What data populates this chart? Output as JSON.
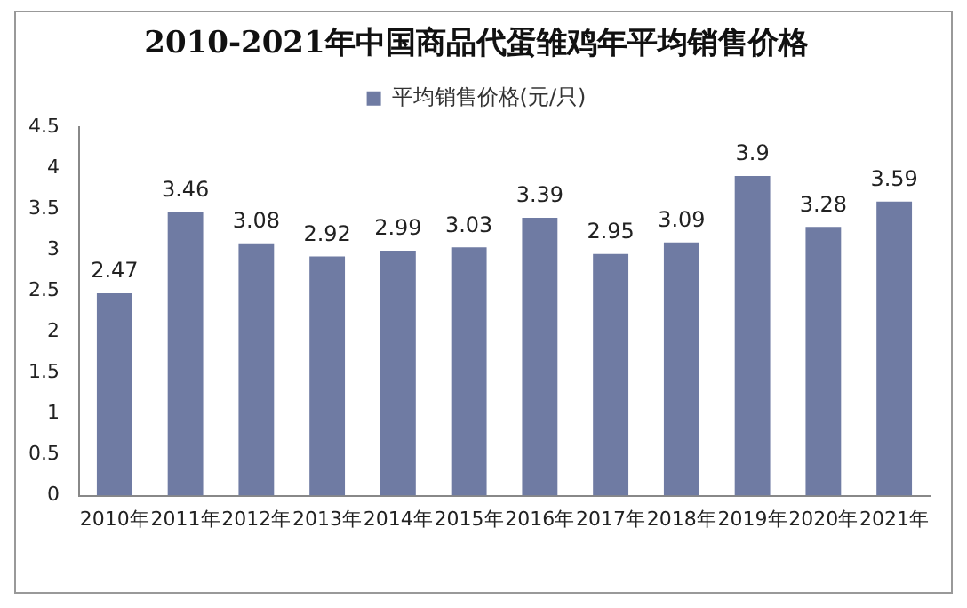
{
  "chart_data": {
    "type": "bar",
    "title": "2010-2021年中国商品代蛋雏鸡年平均销售价格",
    "categories": [
      "2010年",
      "2011年",
      "2012年",
      "2013年",
      "2014年",
      "2015年",
      "2016年",
      "2017年",
      "2018年",
      "2019年",
      "2020年",
      "2021年"
    ],
    "series": [
      {
        "name": "平均销售价格(元/只)",
        "color": "#6f7ba3",
        "values": [
          2.47,
          3.46,
          3.08,
          2.92,
          2.99,
          3.03,
          3.39,
          2.95,
          3.09,
          3.9,
          3.28,
          3.59
        ]
      }
    ],
    "ylim": [
      0,
      4.5
    ],
    "yticks": [
      0,
      0.5,
      1,
      1.5,
      2,
      2.5,
      3,
      3.5,
      4,
      4.5
    ],
    "grid": false,
    "legend": "top",
    "data_labels": true
  }
}
